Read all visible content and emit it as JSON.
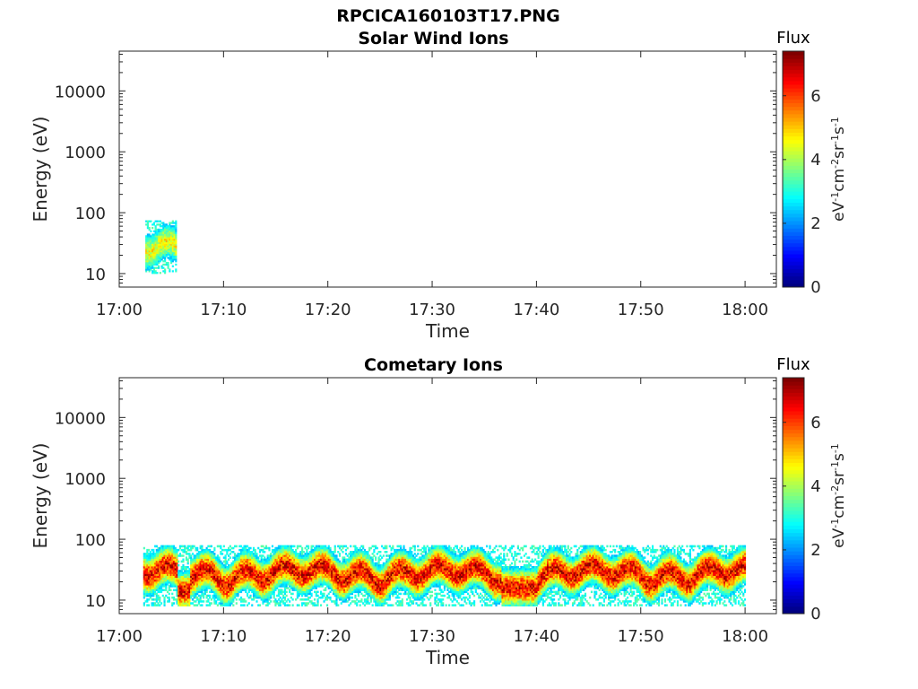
{
  "figure_title": "RPCICA160103T17.PNG",
  "chart_data": [
    {
      "type": "heatmap",
      "title": "Solar Wind Ions",
      "xlabel": "Time",
      "ylabel": "Energy (eV)",
      "yscale": "log",
      "xlim_min": [
        17.0,
        18.05
      ],
      "x_ticks": [
        "17:00",
        "17:10",
        "17:20",
        "17:30",
        "17:40",
        "17:50",
        "18:00"
      ],
      "ylim": [
        6,
        45000
      ],
      "y_ticks": [
        "10",
        "100",
        "1000",
        "10000"
      ],
      "colorbar": {
        "title": "Flux",
        "label_parts": [
          "eV",
          "-1",
          "cm",
          "-2",
          "sr",
          "-1",
          "s",
          "-1"
        ],
        "range": [
          0,
          7.4
        ],
        "ticks": [
          "0",
          "2",
          "4",
          "6"
        ],
        "colormap": "jet"
      },
      "signal": {
        "description_free": true,
        "time_start_min": 2.5,
        "time_end_min": 5.5,
        "energy_low_eV": 10,
        "energy_high_eV": 75,
        "peak_energy_eV": 25,
        "peak_flux": 5.8
      }
    },
    {
      "type": "heatmap",
      "title": "Cometary Ions",
      "xlabel": "Time",
      "ylabel": "Energy (eV)",
      "yscale": "log",
      "xlim_min": [
        17.0,
        18.05
      ],
      "x_ticks": [
        "17:00",
        "17:10",
        "17:20",
        "17:30",
        "17:40",
        "17:50",
        "18:00"
      ],
      "ylim": [
        6,
        45000
      ],
      "y_ticks": [
        "10",
        "100",
        "1000",
        "10000"
      ],
      "colorbar": {
        "title": "Flux",
        "label_parts": [
          "eV",
          "-1",
          "cm",
          "-2",
          "sr",
          "-1",
          "s",
          "-1"
        ],
        "range": [
          0,
          7.4
        ],
        "ticks": [
          "0",
          "2",
          "4",
          "6"
        ],
        "colormap": "jet"
      },
      "signal": {
        "time_start_min": 2.3,
        "time_end_min": 60.0,
        "energy_low_eV": 8,
        "energy_high_eV": 80,
        "peak_energy_eV": 28,
        "peak_flux": 7.0
      }
    }
  ]
}
